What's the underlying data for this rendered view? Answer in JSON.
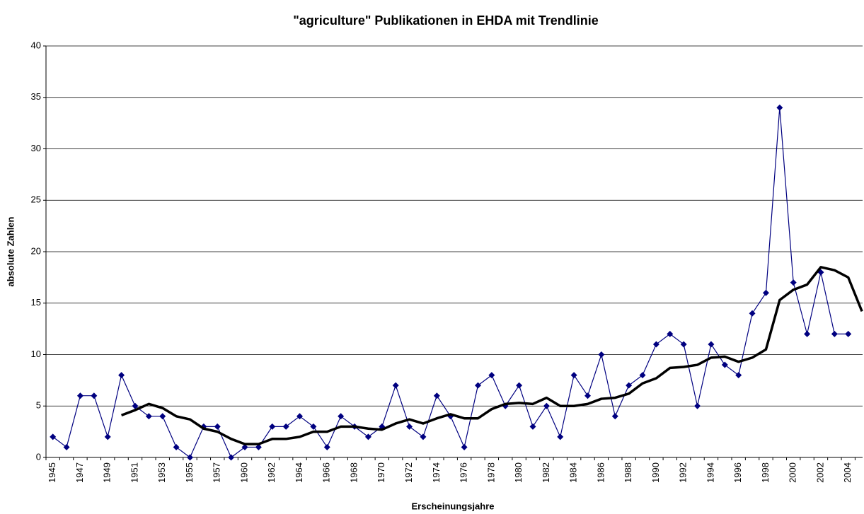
{
  "chart_data": {
    "type": "line",
    "title": "\"agriculture\" Publikationen in EHDA mit Trendlinie",
    "xlabel": "Erscheinungsjahre",
    "ylabel": "absolute Zahlen",
    "categories": [
      "1945",
      null,
      "1947",
      null,
      "1949",
      null,
      "1951",
      null,
      "1953",
      null,
      "1955",
      null,
      "1957",
      null,
      "1960",
      null,
      "1962",
      null,
      "1964",
      null,
      "1966",
      null,
      "1968",
      null,
      "1970",
      null,
      "1972",
      null,
      "1974",
      null,
      "1976",
      null,
      "1978",
      null,
      "1980",
      null,
      "1982",
      null,
      "1984",
      null,
      "1986",
      null,
      "1988",
      null,
      "1990",
      null,
      "1992",
      null,
      "1994",
      null,
      "1996",
      null,
      "1998",
      null,
      "2000",
      null,
      "2002",
      null,
      "2004",
      null
    ],
    "series": [
      {
        "color": "#000080",
        "marker": "diamond",
        "values": [
          2,
          1,
          6,
          6,
          2,
          8,
          5,
          4,
          4,
          1,
          0,
          3,
          3,
          0,
          1,
          1,
          3,
          3,
          4,
          3,
          1,
          4,
          3,
          2,
          3,
          7,
          3,
          2,
          6,
          4,
          1,
          7,
          8,
          5,
          7,
          3,
          5,
          2,
          8,
          6,
          10,
          4,
          7,
          8,
          11,
          12,
          11,
          5,
          11,
          9,
          8,
          14,
          16,
          34,
          17,
          12,
          18,
          12,
          12,
          null
        ]
      },
      {
        "color": "#000000",
        "values": [
          null,
          null,
          null,
          null,
          null,
          4.1,
          4.6,
          5.2,
          4.8,
          4.0,
          3.7,
          2.8,
          2.5,
          1.8,
          1.3,
          1.3,
          1.8,
          1.8,
          2.0,
          2.5,
          2.5,
          3.0,
          3.0,
          2.8,
          2.7,
          3.3,
          3.7,
          3.3,
          3.8,
          4.2,
          3.8,
          3.8,
          4.7,
          5.2,
          5.3,
          5.2,
          5.8,
          5.0,
          5.0,
          5.2,
          5.7,
          5.8,
          6.2,
          7.2,
          7.7,
          8.7,
          8.8,
          9.0,
          9.7,
          9.8,
          9.3,
          9.7,
          10.5,
          15.3,
          16.3,
          16.8,
          18.5,
          18.2,
          17.5,
          14.2
        ]
      }
    ],
    "ylim": [
      0,
      40
    ],
    "yticks": [
      0,
      5,
      10,
      15,
      20,
      25,
      30,
      35,
      40
    ],
    "grid": true
  }
}
